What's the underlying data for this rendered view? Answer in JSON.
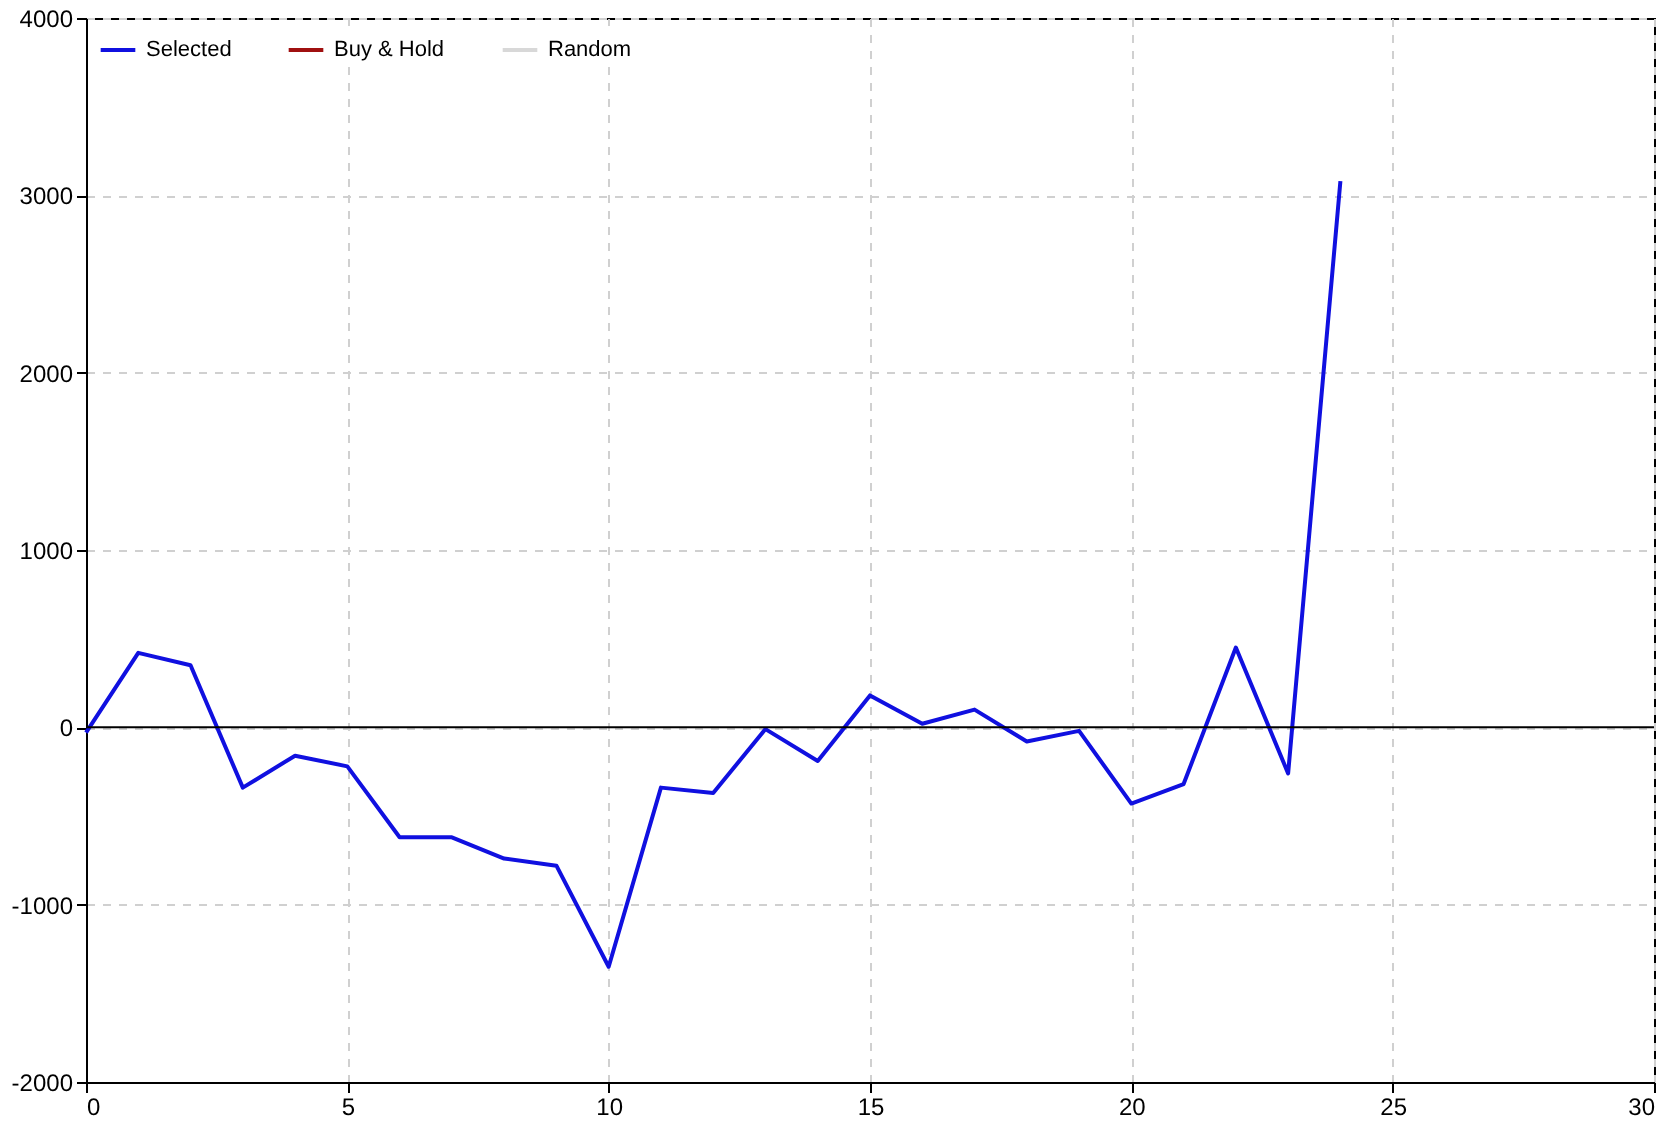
{
  "chart_data": {
    "type": "line",
    "x": [
      0,
      1,
      2,
      3,
      4,
      5,
      6,
      7,
      8,
      9,
      10,
      11,
      12,
      13,
      14,
      15,
      16,
      17,
      18,
      19,
      20,
      21,
      22,
      23,
      24
    ],
    "series": [
      {
        "name": "Selected",
        "color": "#1010e0",
        "values": [
          -30,
          420,
          350,
          -340,
          -160,
          -220,
          -620,
          -620,
          -740,
          -780,
          -1350,
          -340,
          -370,
          -10,
          -190,
          180,
          20,
          100,
          -80,
          -20,
          -430,
          -320,
          450,
          -260,
          3080
        ]
      },
      {
        "name": "Buy & Hold",
        "color": "#a01010",
        "values": [
          null,
          null,
          null,
          null,
          null,
          null,
          null,
          null,
          null,
          null,
          null,
          null,
          null,
          null,
          null,
          null,
          null,
          null,
          null,
          null,
          null,
          null,
          null,
          null,
          null
        ]
      },
      {
        "name": "Random",
        "color": "#d8d8d8",
        "values": [
          null,
          null,
          null,
          null,
          null,
          null,
          null,
          null,
          null,
          null,
          null,
          null,
          null,
          null,
          null,
          null,
          null,
          null,
          null,
          null,
          null,
          null,
          null,
          null,
          null
        ]
      }
    ],
    "xlim": [
      0,
      30
    ],
    "xticks": [
      0,
      5,
      10,
      15,
      20,
      25,
      30
    ],
    "ylim": [
      -2000,
      4000
    ],
    "yticks": [
      -2000,
      -1000,
      0,
      1000,
      2000,
      3000,
      4000
    ],
    "grid": true,
    "legend": "top left",
    "ref_lines": [
      {
        "axis": "y",
        "value": 0,
        "color": "#000000"
      }
    ]
  }
}
